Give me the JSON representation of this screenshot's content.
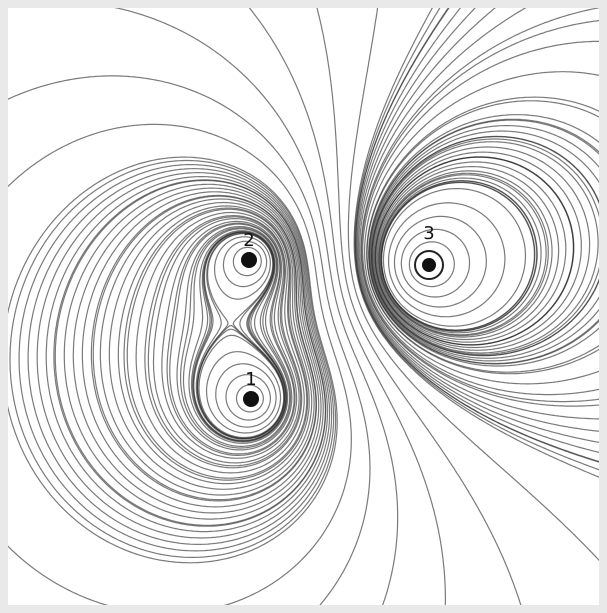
{
  "nodes": [
    {
      "label": "1"
    },
    {
      "label": "2"
    },
    {
      "label": "3"
    }
  ]
}
